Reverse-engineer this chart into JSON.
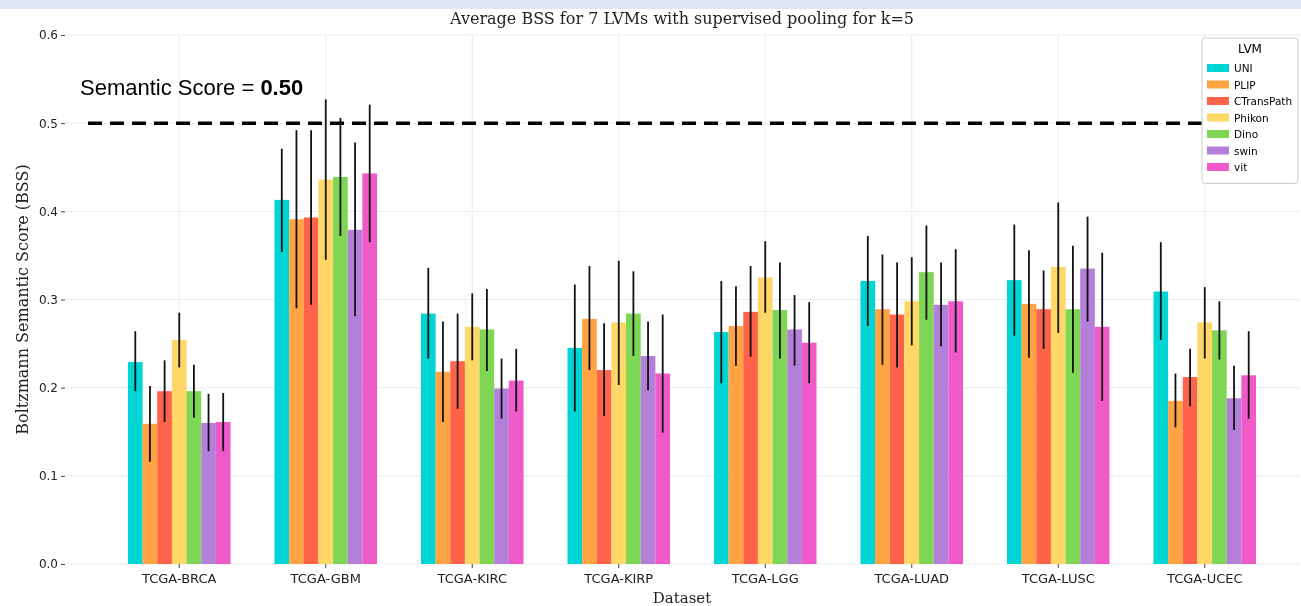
{
  "chart_data": {
    "type": "bar",
    "title": "Average BSS for 7 LVMs with supervised pooling for k=5",
    "xlabel": "Dataset",
    "ylabel": "Boltzmann Semantic Score (BSS)",
    "legend_title": "LVM",
    "categories": [
      "TCGA-BRCA",
      "TCGA-GBM",
      "TCGA-KIRC",
      "TCGA-KIRP",
      "TCGA-LGG",
      "TCGA-LUAD",
      "TCGA-LUSC",
      "TCGA-UCEC"
    ],
    "series": [
      {
        "name": "UNI",
        "color": "#00d5d5",
        "values": [
          0.229,
          0.413,
          0.284,
          0.245,
          0.263,
          0.321,
          0.322,
          0.309
        ],
        "errors": [
          [
            0.196,
            0.264
          ],
          [
            0.354,
            0.471
          ],
          [
            0.233,
            0.336
          ],
          [
            0.173,
            0.317
          ],
          [
            0.205,
            0.321
          ],
          [
            0.27,
            0.372
          ],
          [
            0.259,
            0.385
          ],
          [
            0.254,
            0.365
          ]
        ]
      },
      {
        "name": "PLIP",
        "color": "#ffa343",
        "values": [
          0.159,
          0.391,
          0.218,
          0.278,
          0.27,
          0.289,
          0.295,
          0.185
        ],
        "errors": [
          [
            0.116,
            0.202
          ],
          [
            0.29,
            0.492
          ],
          [
            0.161,
            0.275
          ],
          [
            0.22,
            0.338
          ],
          [
            0.225,
            0.315
          ],
          [
            0.226,
            0.351
          ],
          [
            0.234,
            0.356
          ],
          [
            0.155,
            0.216
          ]
        ]
      },
      {
        "name": "CTransPath",
        "color": "#ff634a",
        "values": [
          0.196,
          0.393,
          0.23,
          0.22,
          0.286,
          0.283,
          0.289,
          0.212
        ],
        "errors": [
          [
            0.161,
            0.231
          ],
          [
            0.294,
            0.492
          ],
          [
            0.176,
            0.284
          ],
          [
            0.168,
            0.273
          ],
          [
            0.235,
            0.338
          ],
          [
            0.223,
            0.342
          ],
          [
            0.244,
            0.333
          ],
          [
            0.179,
            0.244
          ]
        ]
      },
      {
        "name": "Phikon",
        "color": "#ffd766",
        "values": [
          0.254,
          0.436,
          0.269,
          0.274,
          0.325,
          0.298,
          0.337,
          0.274
        ],
        "errors": [
          [
            0.223,
            0.285
          ],
          [
            0.345,
            0.527
          ],
          [
            0.231,
            0.307
          ],
          [
            0.203,
            0.344
          ],
          [
            0.285,
            0.366
          ],
          [
            0.248,
            0.348
          ],
          [
            0.262,
            0.41
          ],
          [
            0.233,
            0.314
          ]
        ]
      },
      {
        "name": "Dino",
        "color": "#7fd655",
        "values": [
          0.196,
          0.439,
          0.266,
          0.284,
          0.288,
          0.331,
          0.289,
          0.265
        ],
        "errors": [
          [
            0.166,
            0.226
          ],
          [
            0.372,
            0.506
          ],
          [
            0.219,
            0.312
          ],
          [
            0.236,
            0.332
          ],
          [
            0.233,
            0.342
          ],
          [
            0.277,
            0.384
          ],
          [
            0.217,
            0.361
          ],
          [
            0.232,
            0.298
          ]
        ]
      },
      {
        "name": "swin",
        "color": "#b47fd9",
        "values": [
          0.16,
          0.379,
          0.199,
          0.236,
          0.266,
          0.294,
          0.335,
          0.188
        ],
        "errors": [
          [
            0.128,
            0.193
          ],
          [
            0.281,
            0.478
          ],
          [
            0.165,
            0.233
          ],
          [
            0.197,
            0.275
          ],
          [
            0.225,
            0.305
          ],
          [
            0.247,
            0.342
          ],
          [
            0.275,
            0.394
          ],
          [
            0.152,
            0.225
          ]
        ]
      },
      {
        "name": "vit",
        "color": "#ef59c8",
        "values": [
          0.161,
          0.443,
          0.208,
          0.216,
          0.251,
          0.298,
          0.269,
          0.214
        ],
        "errors": [
          [
            0.128,
            0.194
          ],
          [
            0.365,
            0.521
          ],
          [
            0.173,
            0.244
          ],
          [
            0.149,
            0.283
          ],
          [
            0.205,
            0.297
          ],
          [
            0.24,
            0.357
          ],
          [
            0.185,
            0.353
          ],
          [
            0.165,
            0.264
          ]
        ]
      }
    ],
    "ylim": [
      0,
      0.6
    ],
    "yticks": [
      {
        "value": 0,
        "label": "0.0"
      },
      0.1,
      0.2,
      0.3,
      0.4,
      0.5,
      0.6
    ],
    "ref_lines": [
      {
        "axis": "y",
        "value": 0.5,
        "label": "Semantic Score = 0.50",
        "color": "#000000",
        "line_style": "dashed"
      }
    ],
    "grid": true,
    "legend": "top right"
  }
}
